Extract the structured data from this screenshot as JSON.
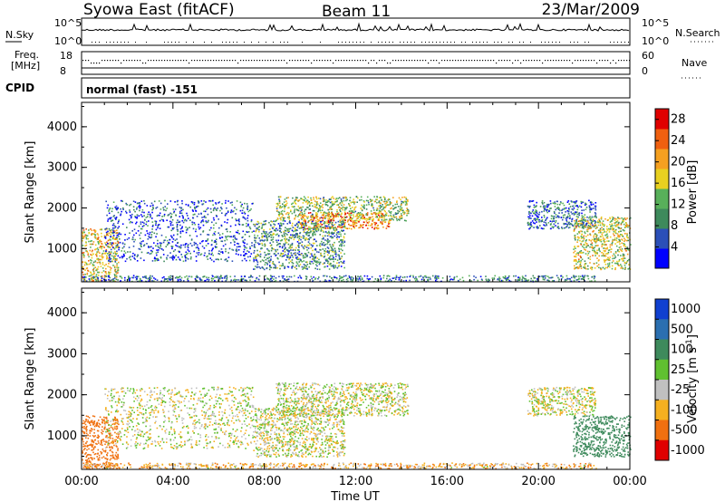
{
  "header": {
    "station": "Syowa East (fitACF)",
    "beam": "Beam 11",
    "date": "23/Mar/2009"
  },
  "top_panels": {
    "nsky_label": "N.Sky",
    "nsky_hi": "10^5",
    "nsky_lo": "10^0",
    "nsearch_label": "N.Search",
    "nsearch_hi": "10^5",
    "nsearch_lo": "10^0",
    "freq_label_1": "Freq.",
    "freq_label_2": "[MHz]",
    "freq_hi": "18",
    "freq_lo": "8",
    "nave_label": "Nave",
    "nave_hi": "60",
    "nave_lo": "0",
    "cpid_label": "CPID",
    "cpid_value": "normal (fast) -151"
  },
  "chart_data": [
    {
      "type": "heatmap",
      "name": "power",
      "ylabel": "Slant Range [km]",
      "xlabel": "Time UT",
      "ylim": [
        180,
        4600
      ],
      "xlim": [
        0,
        24
      ],
      "yticks": [
        "1000",
        "2000",
        "3000",
        "4000"
      ],
      "xticks": [
        "00:00",
        "04:00",
        "08:00",
        "12:00",
        "16:00",
        "20:00",
        "00:00"
      ],
      "colorbar": {
        "label": "Power [dB]",
        "ticks": [
          "4",
          "8",
          "12",
          "16",
          "20",
          "24",
          "28"
        ],
        "range": [
          0,
          30
        ],
        "colors": [
          "#0000ff",
          "#2b4fb8",
          "#3e8a5c",
          "#58b05a",
          "#e8d020",
          "#f5a020",
          "#f06010",
          "#e00000"
        ]
      },
      "echo_regions": [
        {
          "t0": 0.0,
          "t1": 1.6,
          "r0": 200,
          "r1": 1500,
          "level": 18
        },
        {
          "t0": 0.0,
          "t1": 22.5,
          "r0": 200,
          "r1": 350,
          "level": 8
        },
        {
          "t0": 1.0,
          "t1": 7.5,
          "r0": 700,
          "r1": 2200,
          "level": 6
        },
        {
          "t0": 8.5,
          "t1": 14.3,
          "r0": 1700,
          "r1": 2300,
          "level": 14
        },
        {
          "t0": 9.5,
          "t1": 13.5,
          "r0": 1500,
          "r1": 1900,
          "level": 22
        },
        {
          "t0": 7.5,
          "t1": 11.5,
          "r0": 500,
          "r1": 1700,
          "level": 10
        },
        {
          "t0": 19.5,
          "t1": 22.5,
          "r0": 1500,
          "r1": 2200,
          "level": 7
        },
        {
          "t0": 21.5,
          "t1": 24.0,
          "r0": 500,
          "r1": 1800,
          "level": 16
        }
      ]
    },
    {
      "type": "heatmap",
      "name": "velocity",
      "ylabel": "Slant Range [km]",
      "xlabel": "Time UT",
      "ylim": [
        180,
        4600
      ],
      "xlim": [
        0,
        24
      ],
      "yticks": [
        "1000",
        "2000",
        "3000",
        "4000"
      ],
      "xticks": [
        "00:00",
        "04:00",
        "08:00",
        "12:00",
        "16:00",
        "20:00",
        "00:00"
      ],
      "colorbar": {
        "label": "Velocity [m s^-1]",
        "ticks": [
          "1000",
          "500",
          "100",
          "25",
          "-25",
          "-100",
          "-500",
          "-1000"
        ],
        "colors": [
          "#1040d0",
          "#2b6fb0",
          "#3e8a5c",
          "#60c030",
          "#c0c0c0",
          "#f5b020",
          "#f07010",
          "#e00000"
        ]
      },
      "echo_regions": [
        {
          "t0": 0.0,
          "t1": 1.6,
          "r0": 200,
          "r1": 1500,
          "level": -300
        },
        {
          "t0": 0.0,
          "t1": 22.5,
          "r0": 200,
          "r1": 350,
          "level": -60
        },
        {
          "t0": 1.0,
          "t1": 7.5,
          "r0": 700,
          "r1": 2200,
          "level": 0
        },
        {
          "t0": 8.5,
          "t1": 14.3,
          "r0": 1500,
          "r1": 2300,
          "level": 0
        },
        {
          "t0": 7.5,
          "t1": 11.5,
          "r0": 500,
          "r1": 1700,
          "level": 0
        },
        {
          "t0": 19.5,
          "t1": 22.5,
          "r0": 1500,
          "r1": 2200,
          "level": 0
        },
        {
          "t0": 21.5,
          "t1": 24.0,
          "r0": 500,
          "r1": 1500,
          "level": 300
        }
      ]
    }
  ]
}
